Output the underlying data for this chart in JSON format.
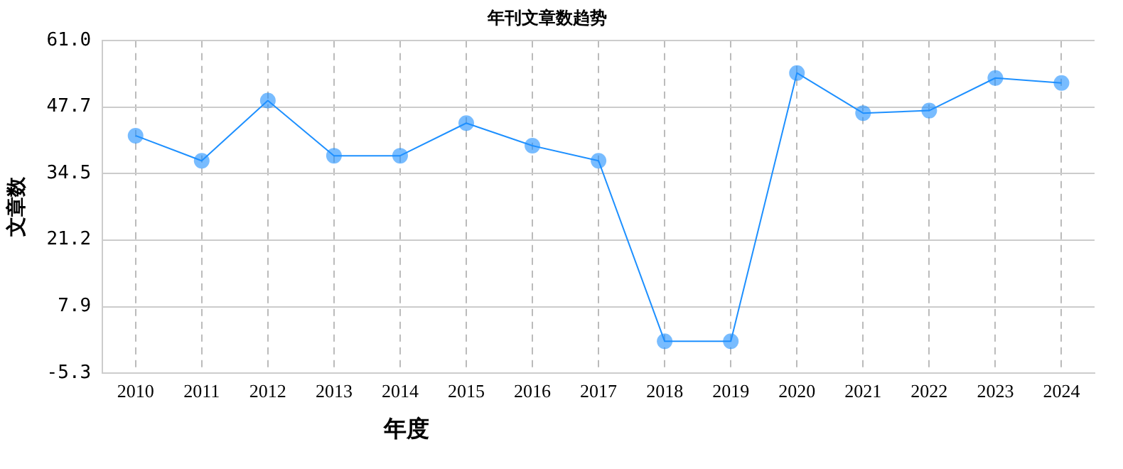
{
  "chart_data": {
    "type": "line",
    "title": "年刊文章数趋势",
    "xlabel": "年度",
    "ylabel": "文章数",
    "categories": [
      "2010",
      "2011",
      "2012",
      "2013",
      "2014",
      "2015",
      "2016",
      "2017",
      "2018",
      "2019",
      "2020",
      "2021",
      "2022",
      "2023",
      "2024"
    ],
    "series": [
      {
        "color": "#1e90ff",
        "values": [
          42,
          37,
          49,
          38,
          38,
          44.5,
          40,
          37,
          1,
          1,
          54.5,
          46.5,
          47,
          53.5,
          52.5
        ]
      }
    ],
    "ylim": [
      -5.3,
      61
    ],
    "yticks": [
      {
        "value": -5.3,
        "label": "-5.3"
      },
      7.9,
      21.2,
      34.5,
      47.7,
      {
        "value": 61,
        "label": "61.0"
      }
    ],
    "grid": true,
    "legend": false,
    "marker": "circle",
    "line_style": "solid"
  }
}
